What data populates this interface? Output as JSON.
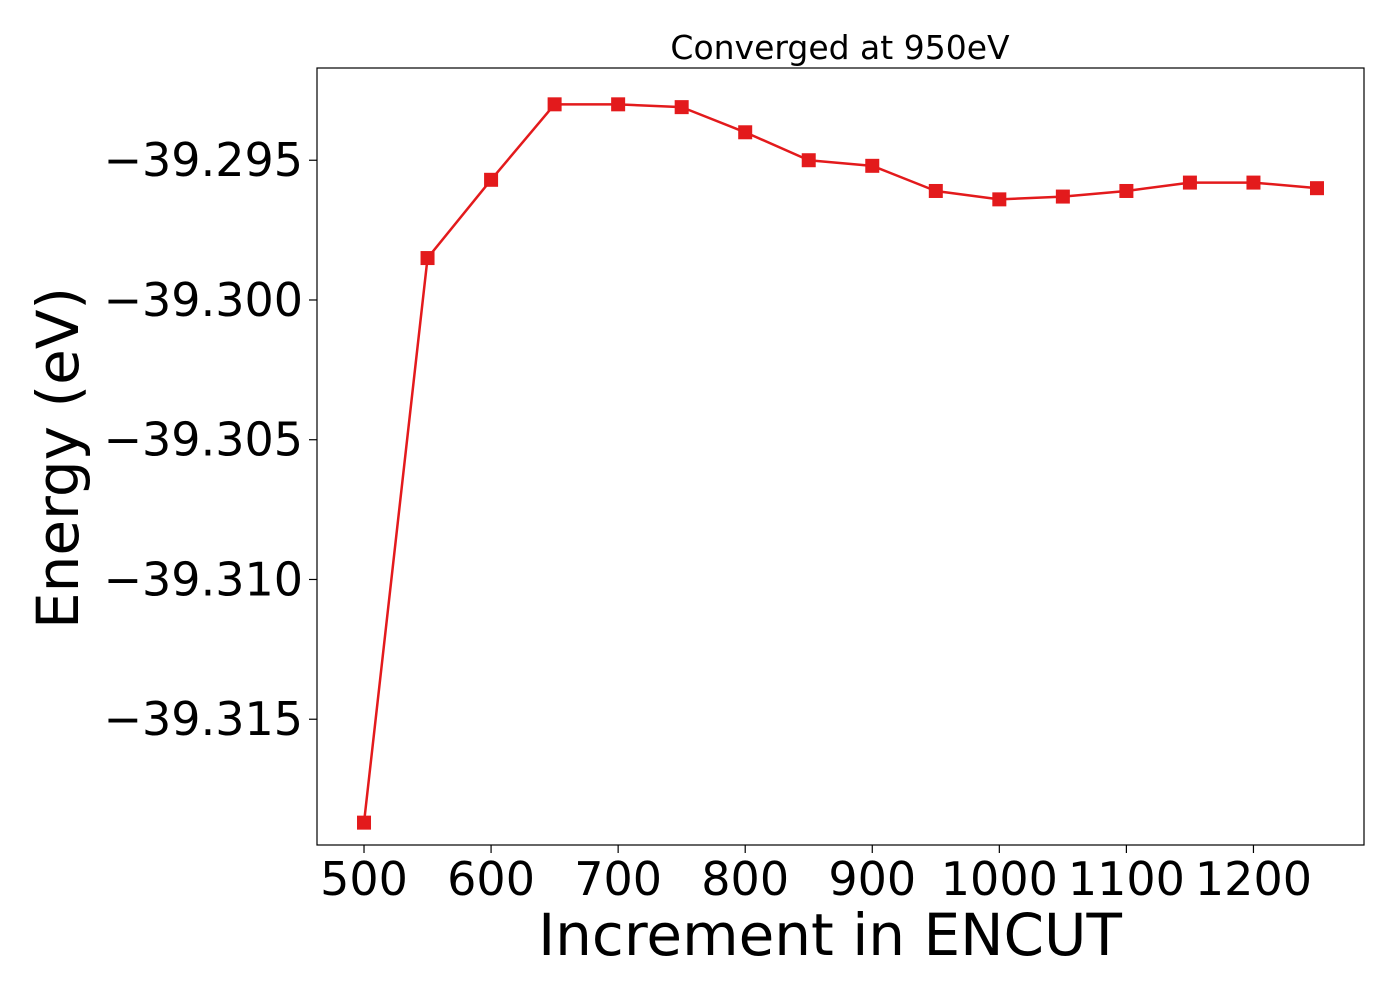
{
  "chart_data": {
    "type": "line",
    "title": "Converged at 950eV",
    "xlabel": "Increment in ENCUT",
    "ylabel": "Energy (eV)",
    "xlim": [
      463,
      1287
    ],
    "ylim": [
      -39.3195,
      -39.2917
    ],
    "x_ticks": [
      500,
      600,
      700,
      800,
      900,
      1000,
      1100,
      1200
    ],
    "x_tick_labels": [
      "500",
      "600",
      "700",
      "800",
      "900",
      "1000",
      "1100",
      "1200"
    ],
    "y_ticks": [
      -39.295,
      -39.3,
      -39.305,
      -39.31,
      -39.315
    ],
    "y_tick_labels": [
      "−39.295",
      "−39.300",
      "−39.305",
      "−39.310",
      "−39.315"
    ],
    "grid": false,
    "legend": "none",
    "series": [
      {
        "color": "#e31a1c",
        "marker": "square",
        "x": [
          500,
          550,
          600,
          650,
          700,
          750,
          800,
          850,
          900,
          950,
          1000,
          1050,
          1100,
          1150,
          1200,
          1250
        ],
        "y": [
          -39.3187,
          -39.2985,
          -39.2957,
          -39.293,
          -39.293,
          -39.2931,
          -39.294,
          -39.295,
          -39.2952,
          -39.2961,
          -39.2964,
          -39.2963,
          -39.2961,
          -39.2958,
          -39.2958,
          -39.296
        ]
      }
    ]
  }
}
